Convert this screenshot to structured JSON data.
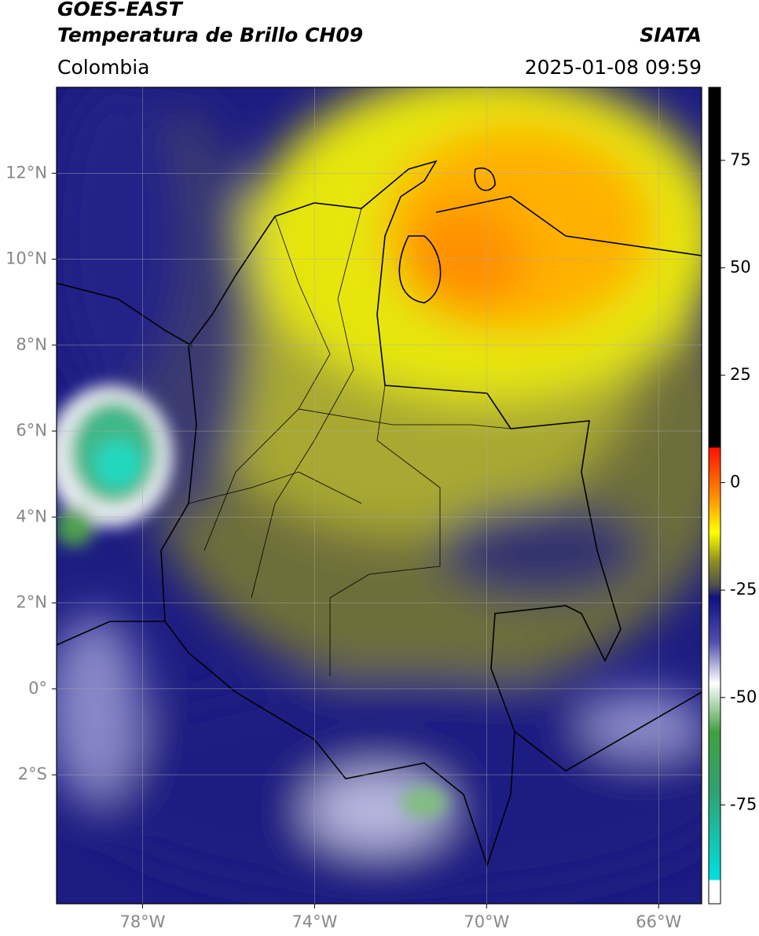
{
  "header": {
    "title": "GOES-EAST",
    "subtitle": "Temperatura de Brillo CH09",
    "source": "SIATA",
    "region": "Colombia",
    "datetime": "2025-01-08 09:59"
  },
  "map": {
    "xlim": [
      -80,
      -65
    ],
    "ylim": [
      -5,
      14
    ],
    "xticks": [
      {
        "value": -78,
        "label": "78°W"
      },
      {
        "value": -74,
        "label": "74°W"
      },
      {
        "value": -70,
        "label": "70°W"
      },
      {
        "value": -66,
        "label": "66°W"
      }
    ],
    "yticks": [
      {
        "value": 12,
        "label": "12°N"
      },
      {
        "value": 10,
        "label": "10°N"
      },
      {
        "value": 8,
        "label": "8°N"
      },
      {
        "value": 6,
        "label": "6°N"
      },
      {
        "value": 4,
        "label": "4°N"
      },
      {
        "value": 2,
        "label": "2°N"
      },
      {
        "value": 0,
        "label": "0°"
      },
      {
        "value": -2,
        "label": "2°S"
      }
    ]
  },
  "colorbar": {
    "ylim": [
      -98,
      92
    ],
    "ticks": [
      75,
      50,
      25,
      0,
      -25,
      -50,
      -75
    ]
  }
}
